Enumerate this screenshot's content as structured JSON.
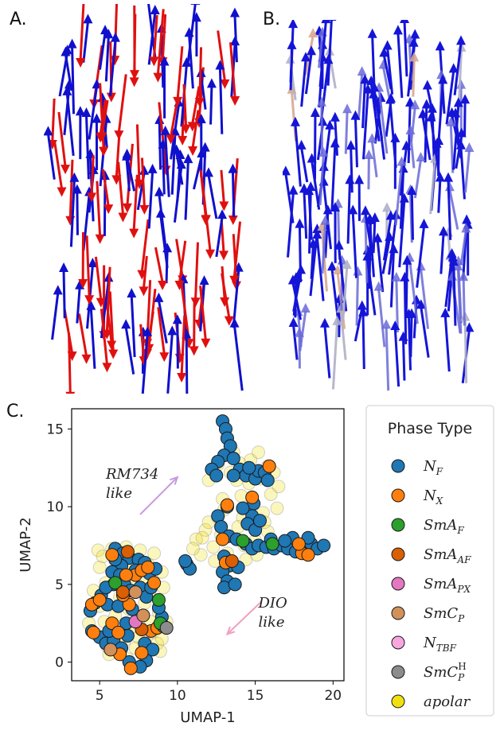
{
  "panels": {
    "a": "A.",
    "b": "B.",
    "c": "C."
  },
  "colors": {
    "blue": "#1010cc",
    "red": "#e01010"
  },
  "chart_data": {
    "type": "scatter",
    "xlabel": "UMAP-1",
    "ylabel": "UMAP-2",
    "xlim": [
      3.2,
      20.7
    ],
    "ylim": [
      -1.2,
      16.3
    ],
    "xticks": [
      5,
      10,
      15,
      20
    ],
    "yticks": [
      0,
      5,
      10,
      15
    ],
    "legend": {
      "title": "Phase Type",
      "placement": "right",
      "entries": [
        {
          "label": "N",
          "sub": "F",
          "sup": "",
          "color": "#1f77b4"
        },
        {
          "label": "N",
          "sub": "X",
          "sup": "",
          "color": "#ff7f0e"
        },
        {
          "label": "SmA",
          "sub": "F",
          "sup": "",
          "color": "#2ca02c"
        },
        {
          "label": "SmA",
          "sub": "AF",
          "sup": "",
          "color": "#d95f02"
        },
        {
          "label": "SmA",
          "sub": "PX",
          "sup": "",
          "color": "#e377c2"
        },
        {
          "label": "SmC",
          "sub": "P",
          "sup": "",
          "color": "#d2905a"
        },
        {
          "label": "N",
          "sub": "TBF",
          "sup": "",
          "color": "#f7a6e0"
        },
        {
          "label": "SmC",
          "sub": "P",
          "sup": "H",
          "color": "#8c8c8c"
        },
        {
          "label": "apolar",
          "sub": "",
          "sup": "",
          "color": "#f0e010"
        }
      ]
    },
    "annotations": [
      {
        "text": [
          "RM734",
          "like"
        ],
        "x": 5.4,
        "y": 11.8,
        "arrow_from": [
          7.6,
          9.5
        ],
        "arrow_to": [
          10.0,
          11.9
        ],
        "color": "#c79be0"
      },
      {
        "text": [
          "DIO",
          "like"
        ],
        "x": 15.2,
        "y": 3.5,
        "arrow_from": [
          15.4,
          3.9
        ],
        "arrow_to": [
          13.2,
          1.8
        ],
        "color": "#f0a0c0"
      }
    ],
    "series": [
      {
        "name": "apolar",
        "color": "#f0e010",
        "points": [
          [
            4.3,
            2.5
          ],
          [
            4.8,
            1.8
          ],
          [
            5.3,
            2.6
          ],
          [
            5.8,
            1.5
          ],
          [
            6.2,
            0.8
          ],
          [
            6.6,
            1.4
          ],
          [
            7.0,
            2.2
          ],
          [
            7.5,
            1.6
          ],
          [
            8.0,
            1.0
          ],
          [
            8.4,
            1.9
          ],
          [
            8.7,
            1.2
          ],
          [
            5.6,
            0.5
          ],
          [
            6.8,
            0.2
          ],
          [
            7.8,
            0.4
          ],
          [
            8.9,
            0.7
          ],
          [
            5.0,
            3.6
          ],
          [
            6.0,
            3.0
          ],
          [
            6.9,
            3.4
          ],
          [
            7.9,
            3.8
          ],
          [
            8.8,
            3.2
          ],
          [
            9.3,
            2.6
          ],
          [
            4.6,
            4.6
          ],
          [
            5.4,
            5.1
          ],
          [
            6.3,
            4.2
          ],
          [
            7.2,
            4.9
          ],
          [
            8.2,
            4.4
          ],
          [
            9.1,
            4.8
          ],
          [
            5.0,
            6.1
          ],
          [
            6.1,
            6.5
          ],
          [
            7.1,
            6.0
          ],
          [
            8.1,
            6.3
          ],
          [
            9.0,
            5.8
          ],
          [
            4.9,
            7.2
          ],
          [
            5.8,
            7.3
          ],
          [
            6.7,
            7.4
          ],
          [
            7.6,
            7.2
          ],
          [
            8.5,
            7.0
          ],
          [
            5.2,
            6.8
          ],
          [
            6.4,
            5.5
          ],
          [
            7.9,
            5.2
          ],
          [
            6.6,
            3.8
          ],
          [
            8.3,
            2.6
          ],
          [
            5.5,
            1.0
          ],
          [
            7.3,
            0.9
          ],
          [
            9.0,
            1.5
          ],
          [
            11.2,
            7.9
          ],
          [
            11.8,
            8.5
          ],
          [
            12.3,
            7.4
          ],
          [
            11.5,
            6.9
          ],
          [
            12.8,
            8.2
          ],
          [
            13.2,
            7.0
          ],
          [
            11.0,
            7.3
          ],
          [
            12.0,
            9.0
          ],
          [
            13.0,
            9.8
          ],
          [
            14.2,
            9.3
          ],
          [
            14.8,
            10.2
          ],
          [
            15.5,
            9.6
          ],
          [
            16.0,
            10.8
          ],
          [
            15.3,
            11.8
          ],
          [
            16.2,
            12.2
          ],
          [
            16.5,
            11.3
          ],
          [
            15.8,
            12.6
          ],
          [
            14.0,
            12.8
          ],
          [
            13.6,
            13.5
          ],
          [
            12.6,
            12.7
          ],
          [
            13.8,
            11.7
          ],
          [
            14.7,
            13.0
          ],
          [
            15.0,
            7.8
          ],
          [
            15.8,
            8.4
          ],
          [
            16.3,
            7.4
          ],
          [
            14.3,
            7.5
          ],
          [
            13.5,
            6.2
          ],
          [
            14.4,
            6.6
          ],
          [
            15.1,
            6.9
          ],
          [
            13.9,
            8.7
          ],
          [
            15.6,
            9.0
          ],
          [
            12.4,
            6.5
          ],
          [
            14.1,
            10.7
          ],
          [
            16.4,
            9.9
          ],
          [
            12.9,
            10.5
          ],
          [
            13.4,
            12.2
          ],
          [
            14.6,
            11.5
          ],
          [
            12.0,
            11.7
          ],
          [
            11.6,
            8.0
          ],
          [
            12.6,
            9.3
          ],
          [
            15.2,
            13.5
          ]
        ]
      },
      {
        "name": "N_F",
        "color": "#1f77b4",
        "points": [
          [
            12.9,
            15.5
          ],
          [
            13.1,
            15.0
          ],
          [
            13.2,
            14.4
          ],
          [
            13.4,
            13.9
          ],
          [
            13.0,
            13.3
          ],
          [
            12.6,
            12.9
          ],
          [
            12.2,
            12.4
          ],
          [
            12.5,
            12.0
          ],
          [
            13.6,
            13.1
          ],
          [
            14.0,
            12.4
          ],
          [
            14.4,
            12.0
          ],
          [
            15.0,
            11.8
          ],
          [
            15.2,
            12.3
          ],
          [
            14.6,
            12.5
          ],
          [
            15.6,
            12.2
          ],
          [
            15.8,
            11.7
          ],
          [
            13.6,
            12.0
          ],
          [
            14.9,
            10.2
          ],
          [
            14.8,
            9.4
          ],
          [
            14.5,
            8.9
          ],
          [
            15.0,
            8.5
          ],
          [
            15.3,
            9.1
          ],
          [
            14.2,
            9.9
          ],
          [
            13.2,
            10.0
          ],
          [
            12.6,
            9.4
          ],
          [
            12.8,
            8.7
          ],
          [
            13.3,
            8.1
          ],
          [
            13.8,
            7.9
          ],
          [
            14.4,
            7.6
          ],
          [
            14.8,
            7.3
          ],
          [
            15.2,
            7.5
          ],
          [
            15.7,
            7.4
          ],
          [
            16.2,
            7.3
          ],
          [
            16.7,
            7.5
          ],
          [
            17.1,
            7.3
          ],
          [
            17.6,
            7.1
          ],
          [
            18.1,
            7.4
          ],
          [
            18.6,
            7.6
          ],
          [
            19.0,
            7.3
          ],
          [
            19.4,
            7.5
          ],
          [
            17.4,
            8.0
          ],
          [
            16.9,
            7.8
          ],
          [
            18.4,
            8.0
          ],
          [
            16.0,
            7.9
          ],
          [
            13.0,
            6.8
          ],
          [
            13.3,
            6.2
          ],
          [
            12.9,
            5.8
          ],
          [
            13.2,
            5.2
          ],
          [
            13.0,
            4.8
          ],
          [
            13.7,
            5.0
          ],
          [
            13.9,
            6.1
          ],
          [
            10.6,
            6.3
          ],
          [
            10.8,
            6.0
          ],
          [
            10.5,
            6.5
          ],
          [
            6.0,
            7.3
          ],
          [
            6.5,
            7.0
          ],
          [
            6.9,
            6.7
          ],
          [
            7.5,
            6.6
          ],
          [
            7.9,
            6.4
          ],
          [
            6.4,
            6.2
          ],
          [
            5.8,
            5.8
          ],
          [
            6.3,
            5.6
          ],
          [
            7.3,
            5.9
          ],
          [
            8.2,
            5.7
          ],
          [
            8.6,
            6.0
          ],
          [
            6.6,
            5.0
          ],
          [
            5.9,
            5.0
          ],
          [
            7.0,
            4.6
          ],
          [
            7.6,
            4.8
          ],
          [
            8.0,
            4.2
          ],
          [
            5.1,
            4.3
          ],
          [
            4.7,
            3.8
          ],
          [
            4.4,
            3.3
          ],
          [
            5.5,
            3.7
          ],
          [
            6.2,
            3.6
          ],
          [
            4.5,
            2.0
          ],
          [
            5.0,
            1.6
          ],
          [
            5.4,
            1.2
          ],
          [
            5.9,
            1.4
          ],
          [
            6.4,
            0.9
          ],
          [
            6.8,
            1.7
          ],
          [
            5.6,
            2.0
          ],
          [
            7.9,
            1.2
          ],
          [
            8.4,
            0.8
          ],
          [
            8.0,
            0.1
          ],
          [
            7.6,
            -0.3
          ],
          [
            6.9,
            0.0
          ],
          [
            5.4,
            4.8
          ],
          [
            7.1,
            3.4
          ],
          [
            6.7,
            2.5
          ],
          [
            6.0,
            6.6
          ],
          [
            8.3,
            4.8
          ],
          [
            9.0,
            2.9
          ],
          [
            8.8,
            3.5
          ]
        ]
      },
      {
        "name": "N_X",
        "color": "#ff7f0e",
        "points": [
          [
            13.2,
            10.1
          ],
          [
            14.8,
            10.6
          ],
          [
            13.1,
            6.4
          ],
          [
            12.9,
            7.9
          ],
          [
            15.9,
            12.6
          ],
          [
            18.0,
            7.0
          ],
          [
            18.4,
            6.9
          ],
          [
            17.8,
            7.6
          ],
          [
            4.5,
            3.7
          ],
          [
            5.0,
            4.0
          ],
          [
            5.8,
            2.5
          ],
          [
            6.2,
            1.9
          ],
          [
            6.9,
            3.7
          ],
          [
            7.3,
            5.6
          ],
          [
            7.7,
            5.9
          ],
          [
            6.7,
            5.6
          ],
          [
            8.1,
            6.1
          ],
          [
            8.5,
            5.1
          ],
          [
            6.3,
            0.5
          ],
          [
            7.0,
            -0.4
          ],
          [
            7.7,
            0.6
          ],
          [
            8.3,
            2.0
          ],
          [
            8.7,
            2.2
          ],
          [
            5.8,
            6.9
          ],
          [
            6.5,
            4.3
          ],
          [
            4.6,
            1.9
          ]
        ]
      },
      {
        "name": "SmA_F",
        "color": "#2ca02c",
        "points": [
          [
            14.2,
            7.8
          ],
          [
            16.1,
            7.6
          ],
          [
            9.1,
            2.3
          ],
          [
            8.8,
            4.0
          ],
          [
            6.0,
            5.1
          ],
          [
            8.9,
            2.5
          ]
        ]
      },
      {
        "name": "SmA_AF",
        "color": "#d95f02",
        "points": [
          [
            6.5,
            4.5
          ],
          [
            7.7,
            2.1
          ],
          [
            6.8,
            7.1
          ],
          [
            13.5,
            6.5
          ]
        ]
      },
      {
        "name": "SmA_PX",
        "color": "#e377c2",
        "points": [
          [
            7.3,
            2.6
          ]
        ]
      },
      {
        "name": "SmC_P",
        "color": "#d2905a",
        "points": [
          [
            7.3,
            4.5
          ],
          [
            7.8,
            3.0
          ],
          [
            5.7,
            0.8
          ]
        ]
      },
      {
        "name": "SmC_P^H",
        "color": "#8c8c8c",
        "points": [
          [
            9.3,
            2.2
          ]
        ]
      }
    ]
  }
}
